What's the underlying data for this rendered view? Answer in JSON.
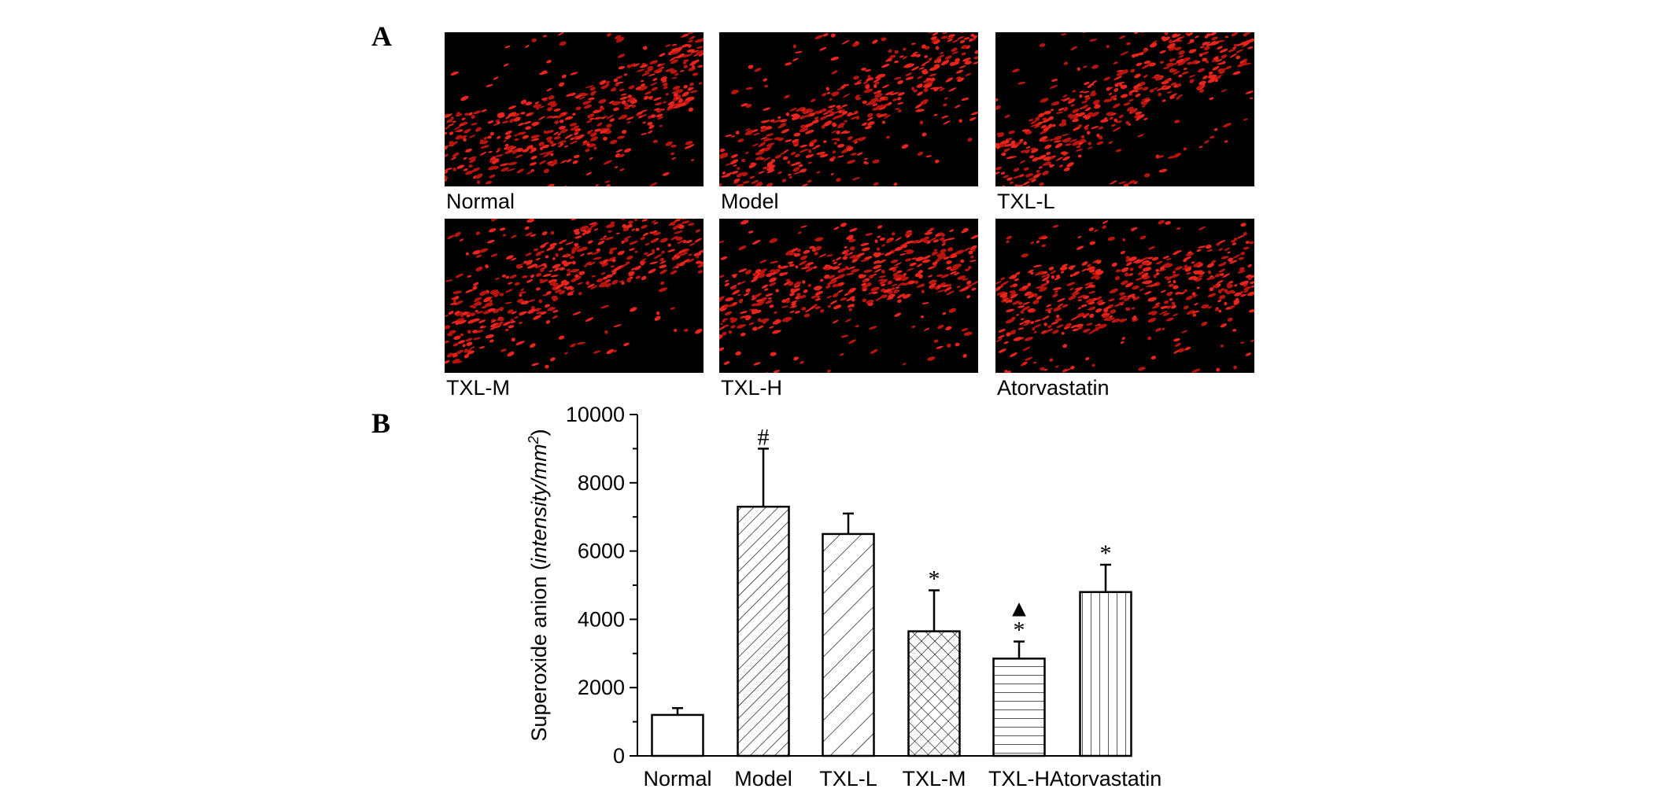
{
  "panel_a": {
    "label": "A",
    "captions": [
      "Normal",
      "Model",
      "TXL-L",
      "TXL-M",
      "TXL-H",
      "Atorvastatin"
    ]
  },
  "chart_data": {
    "type": "bar",
    "panel_label": "B",
    "y_label": [
      "Superoxide anion (",
      "intensity/mm",
      "2",
      ")"
    ],
    "categories": [
      "Normal",
      "Model",
      "TXL-L",
      "TXL-M",
      "TXL-H",
      "Atorvastatin"
    ],
    "values": [
      1200,
      7300,
      6500,
      3650,
      2850,
      4800
    ],
    "errors": [
      200,
      1700,
      600,
      1200,
      500,
      800
    ],
    "annotations": [
      null,
      [
        "#"
      ],
      null,
      [
        "*"
      ],
      [
        "▲",
        "*"
      ],
      [
        "*"
      ]
    ],
    "patterns": [
      "none",
      "diag-dense",
      "diag",
      "cross",
      "horizontal",
      "vertical"
    ],
    "color": "#000000",
    "ylim": [
      0,
      10000
    ],
    "yticks": [
      0,
      2000,
      4000,
      6000,
      8000,
      10000
    ],
    "yminor": [
      1000,
      3000,
      5000,
      7000,
      9000
    ]
  }
}
